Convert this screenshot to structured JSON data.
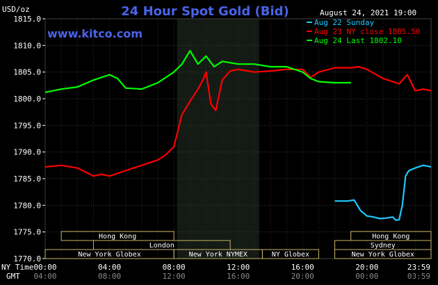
{
  "header": {
    "title": "24 Hour Spot Gold (Bid)",
    "url": "www.kitco.com",
    "date": "August 24, 2021 19:00",
    "currency": "USD/oz"
  },
  "axis_labels": {
    "ny_time": "NY Time",
    "gmt": "GMT"
  },
  "legend": [
    {
      "text": "Aug 22 Sunday",
      "color": "#1ec8ff"
    },
    {
      "text": "Aug 23 NY close 1805.50",
      "color": "#ff0000"
    },
    {
      "text": "Aug 24 Last 1802.10",
      "color": "#00ff00"
    }
  ],
  "markets": [
    {
      "name": "Hong Kong",
      "row": 0,
      "start": 1.0,
      "end": 8.0
    },
    {
      "name": "London",
      "row": 1,
      "start": 3.0,
      "end": 11.5
    },
    {
      "name": "New York Globex",
      "row": 2,
      "start": 0.0,
      "end": 8.0
    },
    {
      "name": "New York NYMEX",
      "row": 2,
      "start": 8.0,
      "end": 13.5
    },
    {
      "name": "NY Globex",
      "row": 2,
      "start": 13.5,
      "end": 17.0
    },
    {
      "name": "Hong Kong",
      "row": 0,
      "start": 19.0,
      "end": 23.9833
    },
    {
      "name": "Sydney",
      "row": 1,
      "start": 18.0,
      "end": 23.9833
    },
    {
      "name": "New York Globex",
      "row": 2,
      "start": 18.0,
      "end": 23.9833
    }
  ],
  "chart_data": {
    "type": "line",
    "title": "24 Hour Spot Gold (Bid)",
    "ylabel": "USD/oz",
    "ylim": [
      1770,
      1815
    ],
    "yticks": [
      "1815.0",
      "1810.0",
      "1805.0",
      "1800.0",
      "1795.0",
      "1790.0",
      "1785.0",
      "1780.0",
      "1775.0",
      "1770.0"
    ],
    "ytick_values": [
      1815,
      1810,
      1805,
      1800,
      1795,
      1790,
      1785,
      1780,
      1775,
      1770
    ],
    "xlim": [
      0,
      23.9833
    ],
    "x_unit": "hours (NY time)",
    "xticks_ny": [
      "00:00",
      "04:00",
      "08:00",
      "12:00",
      "16:00",
      "20:00",
      "23:59"
    ],
    "xticks_gmt": [
      "04:00",
      "08:00",
      "12:00",
      "16:00",
      "20:00",
      "00:00",
      "03:59"
    ],
    "xtick_values": [
      0,
      4,
      8,
      12,
      16,
      20,
      23.9833
    ],
    "grid": true,
    "shaded_region": [
      8.2,
      13.3
    ],
    "series": [
      {
        "name": "Aug 22 Sunday",
        "color": "#1ec8ff",
        "x": [
          18.0,
          18.8,
          19.2,
          19.6,
          20.0,
          20.4,
          20.8,
          21.2,
          21.6,
          21.8,
          22.0,
          22.2,
          22.4,
          22.6,
          23.0,
          23.5,
          23.98
        ],
        "y": [
          1780.8,
          1780.8,
          1781.0,
          1779.0,
          1778.0,
          1777.8,
          1777.5,
          1777.6,
          1777.8,
          1777.2,
          1777.3,
          1780.0,
          1785.5,
          1786.5,
          1787.0,
          1787.5,
          1787.2
        ]
      },
      {
        "name": "Aug 23 NY close 1805.50",
        "color": "#ff0000",
        "x": [
          0.0,
          1.0,
          2.0,
          3.0,
          3.5,
          4.0,
          5.0,
          6.0,
          7.0,
          7.5,
          8.0,
          8.5,
          9.0,
          9.5,
          9.8,
          10.0,
          10.3,
          10.6,
          11.0,
          11.5,
          12.0,
          13.0,
          14.0,
          15.0,
          16.0,
          16.5,
          17.0,
          18.0,
          19.0,
          19.5,
          20.0,
          21.0,
          22.0,
          22.5,
          23.0,
          23.5,
          23.98
        ],
        "y": [
          1787.2,
          1787.5,
          1787.0,
          1785.5,
          1785.8,
          1785.5,
          1786.5,
          1787.5,
          1788.5,
          1789.5,
          1791.0,
          1797.0,
          1799.5,
          1801.8,
          1803.5,
          1805.0,
          1799.0,
          1797.8,
          1803.5,
          1805.2,
          1805.5,
          1805.0,
          1805.2,
          1805.5,
          1805.5,
          1804.0,
          1805.0,
          1805.8,
          1805.8,
          1806.0,
          1805.5,
          1803.8,
          1802.8,
          1804.5,
          1801.5,
          1801.8,
          1801.5
        ]
      },
      {
        "name": "Aug 24 Last 1802.10",
        "color": "#00ff00",
        "x": [
          0.0,
          1.0,
          2.0,
          3.0,
          4.0,
          4.5,
          5.0,
          6.0,
          7.0,
          8.0,
          8.5,
          9.0,
          9.5,
          10.0,
          10.5,
          11.0,
          12.0,
          13.0,
          14.0,
          15.0,
          16.0,
          16.5,
          17.0,
          18.0,
          19.0
        ],
        "y": [
          1801.2,
          1801.8,
          1802.2,
          1803.5,
          1804.5,
          1803.8,
          1802.0,
          1801.8,
          1803.0,
          1805.0,
          1806.5,
          1809.0,
          1806.5,
          1808.0,
          1806.0,
          1807.0,
          1806.5,
          1806.5,
          1806.0,
          1806.0,
          1805.0,
          1803.8,
          1803.2,
          1803.0,
          1803.0
        ]
      }
    ]
  }
}
